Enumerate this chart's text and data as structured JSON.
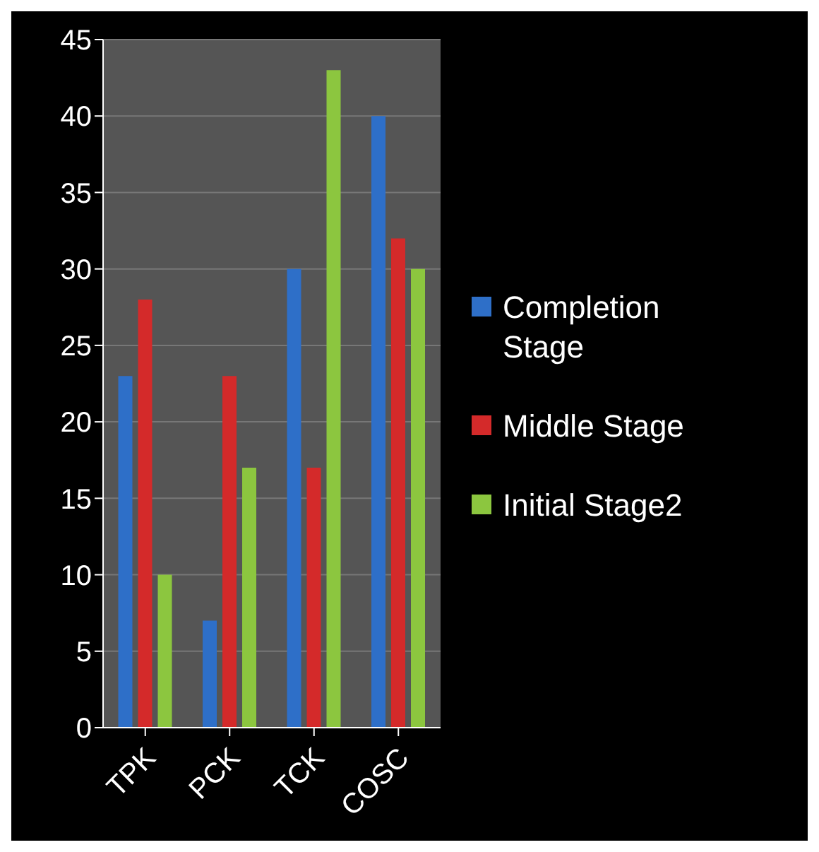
{
  "chart_data": {
    "type": "bar",
    "categories": [
      "TPK",
      "PCK",
      "TCK",
      "COSC"
    ],
    "series": [
      {
        "name": "Completion Stage",
        "color": "#2e6fc8",
        "values": [
          23,
          7,
          30,
          40
        ]
      },
      {
        "name": "Middle Stage",
        "color": "#d42a2a",
        "values": [
          28,
          23,
          17,
          32
        ]
      },
      {
        "name": "Initial Stage2",
        "color": "#8cc63f",
        "values": [
          10,
          17,
          43,
          30
        ]
      }
    ],
    "ylim": [
      0,
      45
    ],
    "yticks": [
      0,
      5,
      10,
      15,
      20,
      25,
      30,
      35,
      40,
      45
    ],
    "grid": "y",
    "legend": "right"
  }
}
